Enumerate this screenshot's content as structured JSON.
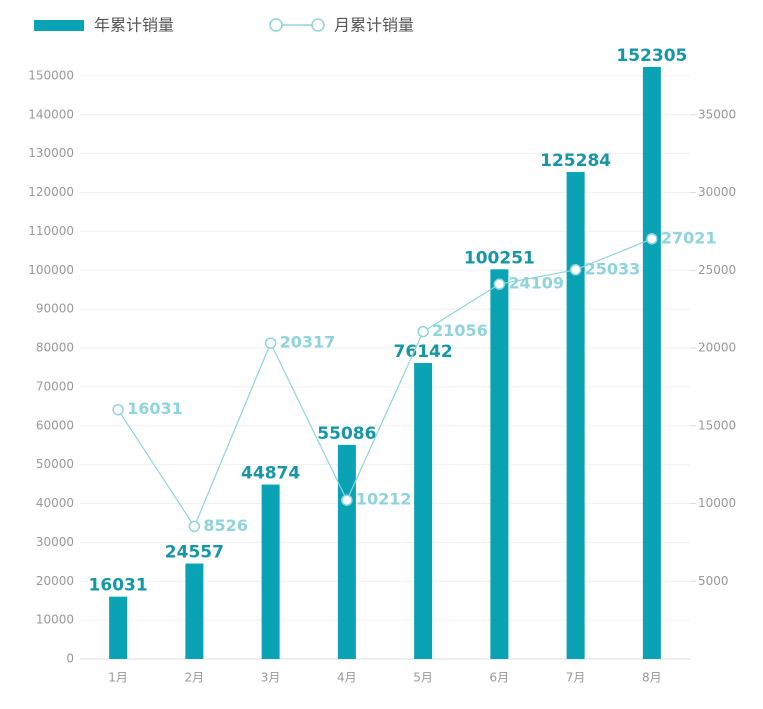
{
  "chart_data": {
    "type": "bar-line",
    "categories": [
      "1月",
      "2月",
      "3月",
      "4月",
      "5月",
      "6月",
      "7月",
      "8月"
    ],
    "series": [
      {
        "name": "年累计销量",
        "type": "bar",
        "color": "#0aa3b5",
        "label_color": "#1597a6",
        "values": [
          16031,
          24557,
          44874,
          55086,
          76142,
          100251,
          125284,
          152305
        ]
      },
      {
        "name": "月累计销量",
        "type": "line",
        "axis": "y2",
        "color": "#8fd4dd",
        "values": [
          16031,
          8526,
          20317,
          10212,
          21056,
          24109,
          25033,
          27021
        ]
      }
    ],
    "ylim": [
      0,
      155000
    ],
    "yticks": [
      0,
      10000,
      20000,
      30000,
      40000,
      50000,
      60000,
      70000,
      80000,
      90000,
      100000,
      110000,
      120000,
      130000,
      140000,
      150000
    ],
    "y2lim": [
      0,
      38750
    ],
    "y2ticks": [
      5000,
      10000,
      15000,
      20000,
      25000,
      30000,
      35000
    ],
    "grid": true,
    "legend": "top-left"
  }
}
